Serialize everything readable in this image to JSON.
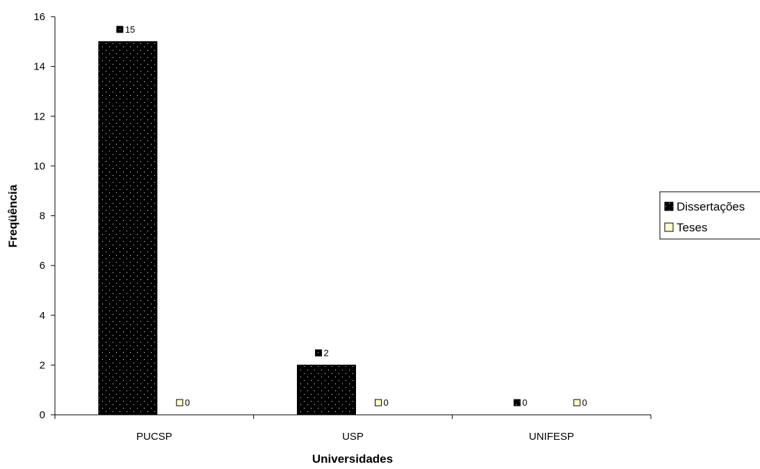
{
  "chart_data": {
    "type": "bar",
    "title": "",
    "xlabel": "Universidades",
    "ylabel": "Freqüência",
    "categories": [
      "PUCSP",
      "USP",
      "UNIFESP"
    ],
    "series": [
      {
        "name": "Dissertações",
        "values": [
          15,
          2,
          0
        ],
        "color": "#000000",
        "pattern": "dotted"
      },
      {
        "name": "Teses",
        "values": [
          0,
          0,
          0
        ],
        "color": "#ffffcc"
      }
    ],
    "ylim": [
      0,
      16
    ],
    "yticks": [
      0,
      2,
      4,
      6,
      8,
      10,
      12,
      14,
      16
    ],
    "data_labels": true,
    "grid": false,
    "legend_position": "right"
  }
}
